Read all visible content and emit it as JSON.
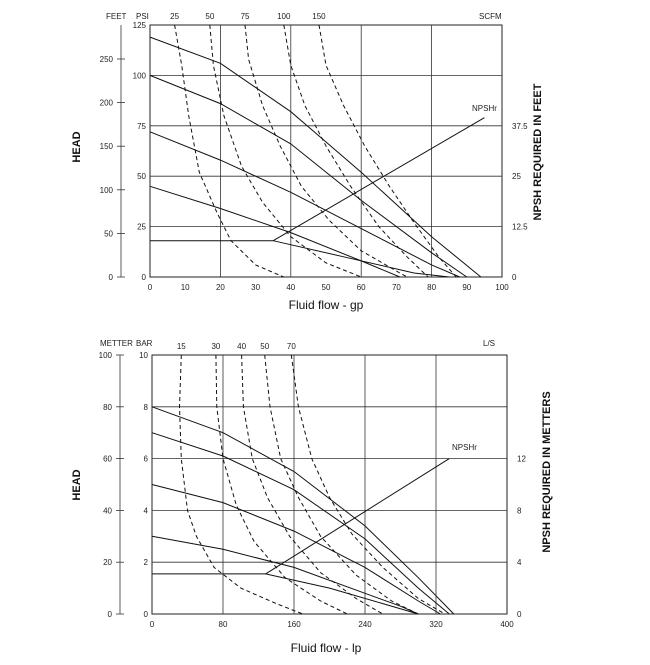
{
  "chart_data": [
    {
      "type": "line",
      "id": "us",
      "xlabel": "Fluid flow - gp",
      "ylabel_left": "HEAD",
      "ylabel_right": "NPSH REQUIRED IN FEET",
      "axis_headers": {
        "feet": "FEET",
        "psi": "PSI",
        "scfm": "SCFM"
      },
      "xlim": [
        0,
        100
      ],
      "xticks": [
        "0",
        "10",
        "20",
        "30",
        "40",
        "50",
        "60",
        "70",
        "80",
        "90",
        "100"
      ],
      "psi_ticks": [
        "0",
        "25",
        "50",
        "75",
        "100",
        "125"
      ],
      "feet_ticks": [
        "0",
        "50",
        "100",
        "150",
        "200",
        "250"
      ],
      "npsh_ticks": [
        "0",
        "12.5",
        "25",
        "37.5"
      ],
      "air_ticks": [
        "25",
        "50",
        "75",
        "100",
        "150"
      ],
      "npsh_label": "NPSHr",
      "head_curves": [
        {
          "points": [
            [
              0,
              18
            ],
            [
              10,
              18
            ],
            [
              35,
              18
            ],
            [
              55,
              10
            ],
            [
              75,
              2
            ],
            [
              85,
              0
            ]
          ]
        },
        {
          "points": [
            [
              0,
              45
            ],
            [
              20,
              34
            ],
            [
              40,
              22
            ],
            [
              60,
              8
            ],
            [
              71,
              0
            ]
          ]
        },
        {
          "points": [
            [
              0,
              72
            ],
            [
              20,
              58
            ],
            [
              40,
              42
            ],
            [
              60,
              24
            ],
            [
              80,
              6
            ],
            [
              88,
              0
            ]
          ]
        },
        {
          "points": [
            [
              0,
              100
            ],
            [
              20,
              86
            ],
            [
              40,
              66
            ],
            [
              60,
              38
            ],
            [
              80,
              12
            ],
            [
              90,
              0
            ]
          ]
        },
        {
          "points": [
            [
              0,
              119
            ],
            [
              20,
              106
            ],
            [
              40,
              82
            ],
            [
              60,
              52
            ],
            [
              80,
              20
            ],
            [
              94,
              0
            ]
          ]
        }
      ],
      "air_curves": [
        {
          "points": [
            [
              7,
              125
            ],
            [
              9,
              105
            ],
            [
              11,
              80
            ],
            [
              14,
              52
            ],
            [
              19,
              32
            ],
            [
              23,
              18
            ],
            [
              30,
              6
            ],
            [
              38,
              0
            ]
          ]
        },
        {
          "points": [
            [
              17,
              125
            ],
            [
              18,
              105
            ],
            [
              21,
              80
            ],
            [
              26,
              55
            ],
            [
              32,
              37
            ],
            [
              40,
              20
            ],
            [
              50,
              7
            ],
            [
              60,
              0
            ]
          ]
        },
        {
          "points": [
            [
              27,
              125
            ],
            [
              28,
              108
            ],
            [
              32,
              85
            ],
            [
              37,
              65
            ],
            [
              43,
              45
            ],
            [
              51,
              28
            ],
            [
              60,
              13
            ],
            [
              70,
              3
            ],
            [
              73,
              0
            ]
          ]
        },
        {
          "points": [
            [
              38,
              125
            ],
            [
              40,
              105
            ],
            [
              44,
              85
            ],
            [
              50,
              65
            ],
            [
              57,
              45
            ],
            [
              65,
              25
            ],
            [
              73,
              10
            ],
            [
              79,
              0
            ]
          ]
        },
        {
          "points": [
            [
              48,
              125
            ],
            [
              50,
              105
            ],
            [
              55,
              85
            ],
            [
              61,
              65
            ],
            [
              68,
              45
            ],
            [
              75,
              27
            ],
            [
              82,
              10
            ],
            [
              87,
              0
            ]
          ]
        }
      ],
      "npsh_curve": {
        "points": [
          [
            35,
            18
          ],
          [
            95,
            79
          ]
        ]
      }
    },
    {
      "type": "line",
      "id": "metric",
      "xlabel": "Fluid flow - lp",
      "ylabel_left": "HEAD",
      "ylabel_right": "NPSH REQUIRED IN METTERS",
      "axis_headers": {
        "meter": "METTER",
        "bar": "BAR",
        "ls": "L/S"
      },
      "xlim": [
        0,
        400
      ],
      "xticks": [
        "0",
        "80",
        "160",
        "240",
        "320",
        "400"
      ],
      "bar_ticks": [
        "0",
        "2",
        "4",
        "6",
        "8",
        "10"
      ],
      "meter_ticks": [
        "0",
        "20",
        "40",
        "60",
        "80",
        "100"
      ],
      "npsh_ticks": [
        "0",
        "4",
        "8",
        "12"
      ],
      "air_ticks": [
        "15",
        "30",
        "40",
        "50",
        "70"
      ],
      "npsh_label": "NPSHr",
      "head_curves": [
        {
          "points": [
            [
              0,
              1.55
            ],
            [
              40,
              1.55
            ],
            [
              128,
              1.55
            ],
            [
              200,
              1.0
            ],
            [
              260,
              0.4
            ],
            [
              300,
              0
            ]
          ]
        },
        {
          "points": [
            [
              0,
              3
            ],
            [
              80,
              2.5
            ],
            [
              160,
              1.8
            ],
            [
              240,
              0.8
            ],
            [
              280,
              0.3
            ],
            [
              300,
              0
            ]
          ]
        },
        {
          "points": [
            [
              0,
              5
            ],
            [
              80,
              4.3
            ],
            [
              160,
              3.2
            ],
            [
              240,
              1.8
            ],
            [
              300,
              0.5
            ],
            [
              325,
              0
            ]
          ]
        },
        {
          "points": [
            [
              0,
              7
            ],
            [
              80,
              6.1
            ],
            [
              160,
              4.8
            ],
            [
              240,
              2.9
            ],
            [
              300,
              1.0
            ],
            [
              335,
              0
            ]
          ]
        },
        {
          "points": [
            [
              0,
              8
            ],
            [
              80,
              7.0
            ],
            [
              160,
              5.5
            ],
            [
              240,
              3.4
            ],
            [
              300,
              1.4
            ],
            [
              340,
              0
            ]
          ]
        }
      ],
      "air_curves": [
        {
          "points": [
            [
              33,
              10
            ],
            [
              31,
              8
            ],
            [
              33,
              6
            ],
            [
              40,
              4
            ],
            [
              50,
              3
            ],
            [
              70,
              1.8
            ],
            [
              100,
              1.0
            ],
            [
              140,
              0.4
            ],
            [
              170,
              0
            ]
          ]
        },
        {
          "points": [
            [
              72,
              10
            ],
            [
              73,
              8
            ],
            [
              80,
              6
            ],
            [
              95,
              4.2
            ],
            [
              115,
              2.8
            ],
            [
              150,
              1.4
            ],
            [
              190,
              0.5
            ],
            [
              220,
              0
            ]
          ]
        },
        {
          "points": [
            [
              101,
              10
            ],
            [
              103,
              8
            ],
            [
              113,
              6
            ],
            [
              130,
              4.5
            ],
            [
              155,
              3.0
            ],
            [
              190,
              1.6
            ],
            [
              230,
              0.6
            ],
            [
              260,
              0
            ]
          ]
        },
        {
          "points": [
            [
              127,
              10
            ],
            [
              133,
              8
            ],
            [
              145,
              6
            ],
            [
              165,
              4.5
            ],
            [
              190,
              3.0
            ],
            [
              230,
              1.5
            ],
            [
              270,
              0.5
            ],
            [
              300,
              0
            ]
          ]
        },
        {
          "points": [
            [
              157,
              10
            ],
            [
              165,
              8
            ],
            [
              180,
              6
            ],
            [
              200,
              4.5
            ],
            [
              225,
              3.1
            ],
            [
              260,
              1.8
            ],
            [
              300,
              0.6
            ],
            [
              330,
              0
            ]
          ]
        }
      ],
      "npsh_curve": {
        "points": [
          [
            128,
            1.55
          ],
          [
            335,
            6.0
          ]
        ]
      }
    }
  ]
}
